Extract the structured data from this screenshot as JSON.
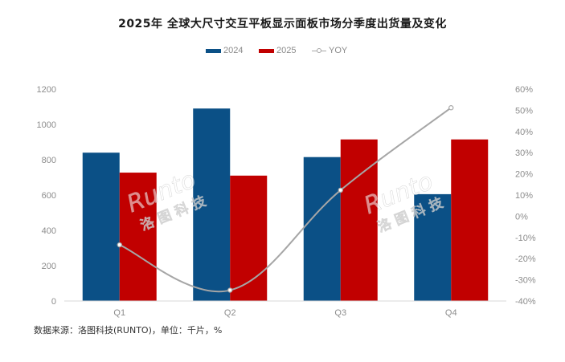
{
  "title": "2025年 全球大尺寸交互平板显示面板市场分季度出货量及变化",
  "legend": {
    "items": [
      {
        "label": "2024",
        "color": "#0b5086",
        "type": "bar"
      },
      {
        "label": "2025",
        "color": "#c10000",
        "type": "bar"
      },
      {
        "label": "YOY",
        "color": "#a6a6a6",
        "type": "line"
      }
    ]
  },
  "source": "数据来源：洛图科技(RUNTO)，单位：千片，%",
  "watermark": {
    "latin": "Runto",
    "cjk": "洛图科技"
  },
  "chart_data": {
    "type": "bar",
    "title": "2025年 全球大尺寸交互平板显示面板市场分季度出货量及变化",
    "categories": [
      "Q1",
      "Q2",
      "Q3",
      "Q4"
    ],
    "series": [
      {
        "name": "2024",
        "type": "bar",
        "axis": "left",
        "color": "#0b5086",
        "values": [
          840,
          1090,
          815,
          605
        ]
      },
      {
        "name": "2025",
        "type": "bar",
        "axis": "left",
        "color": "#c10000",
        "values": [
          727,
          710,
          915,
          915
        ]
      },
      {
        "name": "YOY",
        "type": "line",
        "axis": "right",
        "color": "#a6a6a6",
        "values": [
          -13.5,
          -34.9,
          12.3,
          51.2
        ],
        "unit": "%"
      }
    ],
    "xlabel": "",
    "ylabel": "千片",
    "ylim": [
      0,
      1200
    ],
    "yticks": [
      "0",
      "200",
      "400",
      "600",
      "800",
      "1000",
      "1200"
    ],
    "y2lim": [
      -40,
      60
    ],
    "y2ticks": [
      "-40%",
      "-30%",
      "-20%",
      "-10%",
      "0%",
      "10%",
      "20%",
      "30%",
      "40%",
      "50%",
      "60%"
    ],
    "grid": false,
    "legend_position": "top",
    "annotations": [
      "数据来源：洛图科技(RUNTO)，单位：千片，%"
    ]
  }
}
